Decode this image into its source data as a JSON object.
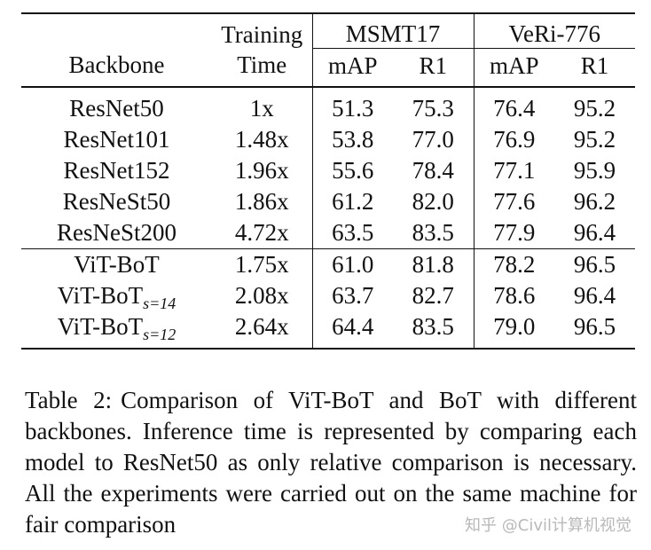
{
  "table": {
    "headers": {
      "backbone": "Backbone",
      "training_line1": "Training",
      "training_line2": "Time",
      "msmt": "MSMT17",
      "veri": "VeRi-776",
      "map": "mAP",
      "r1": "R1"
    },
    "group1": [
      {
        "backbone": "ResNet50",
        "time": "1x",
        "msmt_map": "51.3",
        "msmt_r1": "75.3",
        "veri_map": "76.4",
        "veri_r1": "95.2"
      },
      {
        "backbone": "ResNet101",
        "time": "1.48x",
        "msmt_map": "53.8",
        "msmt_r1": "77.0",
        "veri_map": "76.9",
        "veri_r1": "95.2"
      },
      {
        "backbone": "ResNet152",
        "time": "1.96x",
        "msmt_map": "55.6",
        "msmt_r1": "78.4",
        "veri_map": "77.1",
        "veri_r1": "95.9"
      },
      {
        "backbone": "ResNeSt50",
        "time": "1.86x",
        "msmt_map": "61.2",
        "msmt_r1": "82.0",
        "veri_map": "77.6",
        "veri_r1": "96.2"
      },
      {
        "backbone": "ResNeSt200",
        "time": "4.72x",
        "msmt_map": "63.5",
        "msmt_r1": "83.5",
        "veri_map": "77.9",
        "veri_r1": "96.4"
      }
    ],
    "group2": [
      {
        "backbone": "ViT-BoT",
        "sub": "",
        "time": "1.75x",
        "msmt_map": "61.0",
        "msmt_r1": "81.8",
        "veri_map": "78.2",
        "veri_r1": "96.5"
      },
      {
        "backbone": "ViT-BoT",
        "sub": "s=14",
        "time": "2.08x",
        "msmt_map": "63.7",
        "msmt_r1": "82.7",
        "veri_map": "78.6",
        "veri_r1": "96.4"
      },
      {
        "backbone": "ViT-BoT",
        "sub": "s=12",
        "time": "2.64x",
        "msmt_map": "64.4",
        "msmt_r1": "83.5",
        "veri_map": "79.0",
        "veri_r1": "96.5"
      }
    ]
  },
  "caption": {
    "label": "Table 2:",
    "text": "Comparison of ViT-BoT and BoT with different backbones. Inference time is represented by comparing each model to ResNet50 as only relative comparison is necessary. All the experiments were carried out on the same machine for fair comparison"
  },
  "watermark": "知乎 @Civil计算机视觉"
}
